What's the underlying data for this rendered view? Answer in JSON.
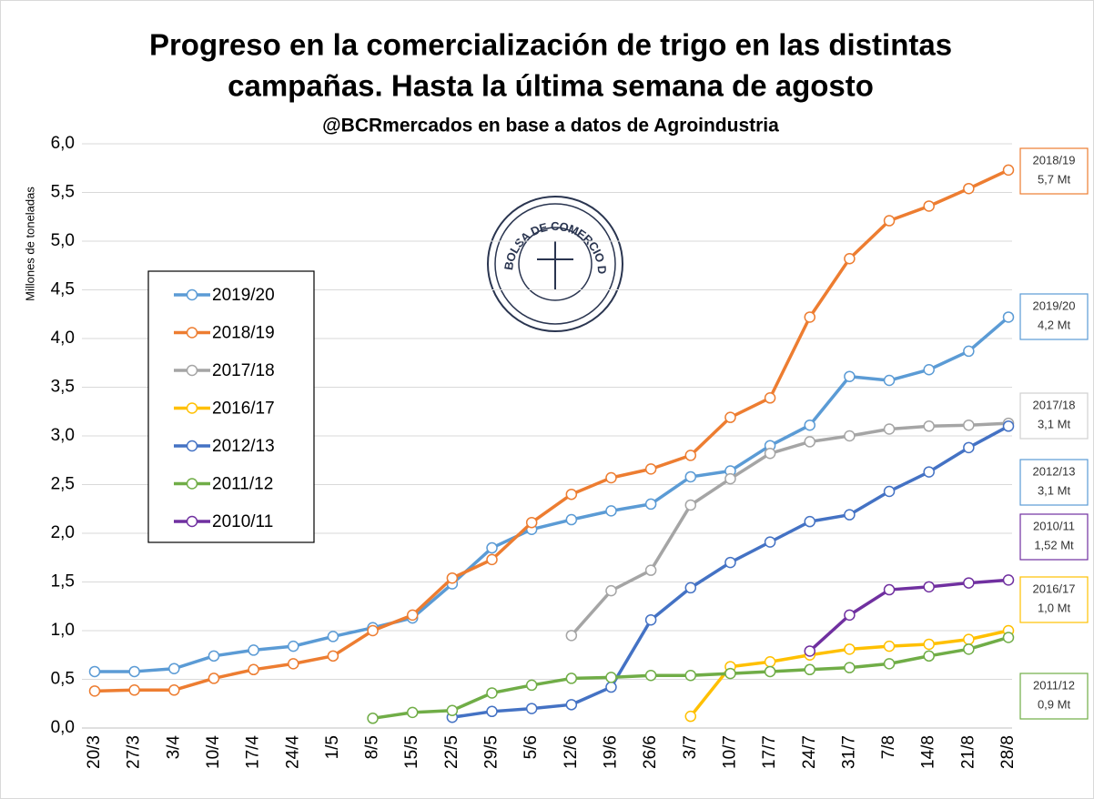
{
  "chart_data": {
    "type": "line",
    "title": [
      "Progreso en la comercialización de trigo en las distintas",
      "campañas. Hasta la última semana de agosto"
    ],
    "subtitle": "@BCRmercados en base a datos de Agroindustria",
    "y_label": "Millones de toneladas",
    "logo_text": "BOLSA DE COMERCIO DE ROSARIO",
    "categories": [
      "20/3",
      "27/3",
      "3/4",
      "10/4",
      "17/4",
      "24/4",
      "1/5",
      "8/5",
      "15/5",
      "22/5",
      "29/5",
      "5/6",
      "12/6",
      "19/6",
      "26/6",
      "3/7",
      "10/7",
      "17/7",
      "24/7",
      "31/7",
      "7/8",
      "14/8",
      "21/8",
      "28/8"
    ],
    "ylim": [
      0,
      6
    ],
    "yticks": [
      {
        "value": 0,
        "label": "0,0"
      },
      {
        "value": 0.5,
        "label": "0,5"
      },
      {
        "value": 1,
        "label": "1,0"
      },
      {
        "value": 1.5,
        "label": "1,5"
      },
      {
        "value": 2,
        "label": "2,0"
      },
      {
        "value": 2.5,
        "label": "2,5"
      },
      {
        "value": 3,
        "label": "3,0"
      },
      {
        "value": 3.5,
        "label": "3,5"
      },
      {
        "value": 4,
        "label": "4,0"
      },
      {
        "value": 4.5,
        "label": "4,5"
      },
      {
        "value": 5,
        "label": "5,0"
      },
      {
        "value": 5.5,
        "label": "5,5"
      },
      {
        "value": 6,
        "label": "6,0"
      }
    ],
    "grid": true,
    "legend": "left",
    "series": [
      {
        "name": "2019/20",
        "color": "#5b9bd5",
        "values": [
          0.58,
          0.58,
          0.61,
          0.74,
          0.8,
          0.84,
          0.94,
          1.03,
          1.13,
          1.48,
          1.85,
          2.04,
          2.14,
          2.23,
          2.3,
          2.58,
          2.64,
          2.9,
          3.11,
          3.61,
          3.57,
          3.68,
          3.87,
          4.22
        ]
      },
      {
        "name": "2018/19",
        "color": "#ed7d31",
        "values": [
          0.38,
          0.39,
          0.39,
          0.51,
          0.6,
          0.66,
          0.74,
          1.0,
          1.16,
          1.54,
          1.73,
          2.11,
          2.4,
          2.57,
          2.66,
          2.8,
          3.19,
          3.39,
          4.22,
          4.82,
          5.21,
          5.36,
          5.54,
          5.73
        ]
      },
      {
        "name": "2017/18",
        "color": "#a5a5a5",
        "values": [
          null,
          null,
          null,
          null,
          null,
          null,
          null,
          null,
          null,
          null,
          null,
          null,
          0.95,
          1.41,
          1.62,
          2.29,
          2.56,
          2.82,
          2.94,
          3.0,
          3.07,
          3.1,
          3.11,
          3.13
        ]
      },
      {
        "name": "2016/17",
        "color": "#ffc000",
        "values": [
          null,
          null,
          null,
          null,
          null,
          null,
          null,
          null,
          null,
          null,
          null,
          null,
          null,
          null,
          null,
          0.12,
          0.63,
          0.68,
          0.75,
          0.81,
          0.84,
          0.86,
          0.91,
          1.0
        ]
      },
      {
        "name": "2012/13",
        "color": "#4472c4",
        "values": [
          null,
          null,
          null,
          null,
          null,
          null,
          null,
          null,
          null,
          0.11,
          0.17,
          0.2,
          0.24,
          0.42,
          1.11,
          1.44,
          1.7,
          1.91,
          2.12,
          2.19,
          2.43,
          2.63,
          2.88,
          3.1
        ]
      },
      {
        "name": "2011/12",
        "color": "#70ad47",
        "values": [
          null,
          null,
          null,
          null,
          null,
          null,
          null,
          0.1,
          0.16,
          0.18,
          0.36,
          0.44,
          0.51,
          0.52,
          0.54,
          0.54,
          0.56,
          0.58,
          0.6,
          0.62,
          0.66,
          0.74,
          0.81,
          0.93
        ]
      },
      {
        "name": "2010/11",
        "color": "#7030a0",
        "values": [
          null,
          null,
          null,
          null,
          null,
          null,
          null,
          null,
          null,
          null,
          null,
          null,
          null,
          null,
          null,
          null,
          null,
          null,
          0.79,
          1.16,
          1.42,
          1.45,
          1.49,
          1.52
        ]
      }
    ],
    "annotations": [
      {
        "lines": [
          "2018/19",
          "5,7 Mt"
        ],
        "color": "#ed7d31"
      },
      {
        "lines": [
          "2019/20",
          "4,2 Mt"
        ],
        "color": "#5b9bd5"
      },
      {
        "lines": [
          "2017/18",
          "3,1 Mt"
        ],
        "color": "#d0d0d0"
      },
      {
        "lines": [
          "2012/13",
          "3,1 Mt"
        ],
        "color": "#5b9bd5"
      },
      {
        "lines": [
          "2010/11",
          "1,52 Mt"
        ],
        "color": "#7030a0"
      },
      {
        "lines": [
          "2016/17",
          "1,0 Mt"
        ],
        "color": "#ffc000"
      },
      {
        "lines": [
          "2011/12",
          "0,9 Mt"
        ],
        "color": "#70ad47"
      }
    ]
  }
}
